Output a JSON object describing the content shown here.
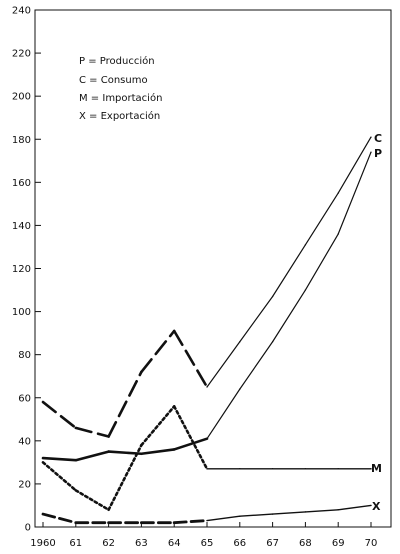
{
  "chart_data": {
    "type": "line",
    "x": [
      1960,
      1961,
      1962,
      1963,
      1964,
      1965,
      1966,
      1967,
      1968,
      1969,
      1970
    ],
    "x_tick_labels": [
      "1960",
      "61",
      "62",
      "63",
      "64",
      "65",
      "66",
      "67",
      "68",
      "69",
      "70"
    ],
    "y_ticks": [
      0,
      20,
      40,
      60,
      80,
      100,
      120,
      140,
      160,
      180,
      200,
      220,
      240
    ],
    "ylim": [
      0,
      240
    ],
    "grid": false,
    "legend_position": "top-left",
    "legend": [
      {
        "key": "P",
        "text": "P = Producción"
      },
      {
        "key": "C",
        "text": "C = Consumo"
      },
      {
        "key": "M",
        "text": "M = Importación"
      },
      {
        "key": "X",
        "text": "X = Exportación"
      }
    ],
    "series": [
      {
        "label": "C",
        "style": "composite",
        "values": [
          58,
          46,
          42,
          72,
          91,
          65,
          86,
          107,
          131,
          155,
          181
        ]
      },
      {
        "label": "P",
        "style": "composite",
        "values": [
          32,
          31,
          35,
          34,
          36,
          41,
          64,
          86,
          110,
          136,
          174
        ]
      },
      {
        "label": "M",
        "style": "composite",
        "values": [
          30,
          17,
          8,
          38,
          56,
          27,
          27,
          27,
          27,
          27,
          27
        ]
      },
      {
        "label": "X",
        "style": "composite",
        "values": [
          6,
          2,
          2,
          2,
          2,
          3,
          5,
          6,
          7,
          8,
          10
        ]
      }
    ]
  }
}
